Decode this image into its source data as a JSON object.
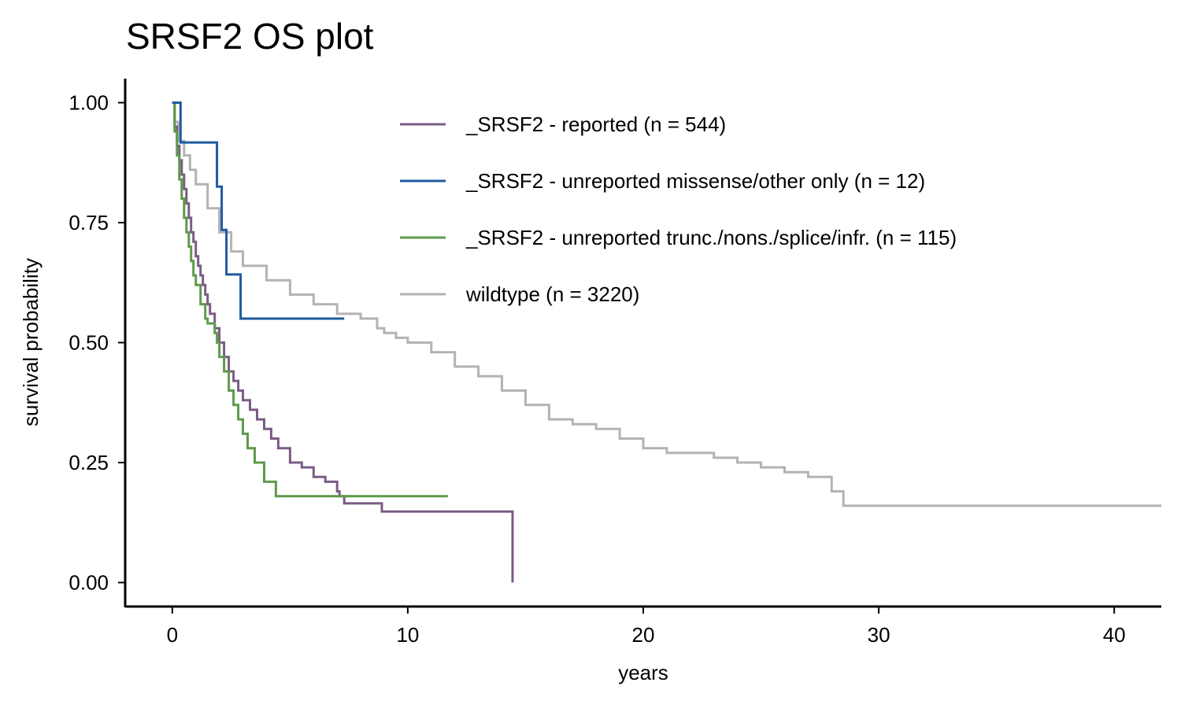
{
  "chart_data": {
    "type": "line",
    "title": "SRSF2 OS plot",
    "xlabel": "years",
    "ylabel": "survival probability",
    "xlim": [
      -2,
      42
    ],
    "ylim": [
      -0.05,
      1.05
    ],
    "xticks": [
      0,
      10,
      20,
      30,
      40
    ],
    "xtick_labels": [
      "0",
      "10",
      "20",
      "30",
      "40"
    ],
    "yticks": [
      0,
      0.25,
      0.5,
      0.75,
      1.0
    ],
    "ytick_labels": [
      "0.00",
      "0.25",
      "0.50",
      "0.75",
      "1.00"
    ],
    "grid": false,
    "legend_position": "top-right",
    "step": true,
    "series": [
      {
        "name": "_SRSF2 - reported (n = 544)",
        "color": "#7b5c85",
        "x": [
          0,
          0.1,
          0.2,
          0.3,
          0.4,
          0.5,
          0.6,
          0.7,
          0.8,
          0.9,
          1.0,
          1.1,
          1.2,
          1.3,
          1.4,
          1.5,
          1.6,
          1.8,
          2.0,
          2.2,
          2.4,
          2.6,
          2.8,
          3.0,
          3.3,
          3.6,
          3.9,
          4.2,
          4.5,
          5.0,
          5.5,
          6.0,
          6.5,
          6.9,
          7.0,
          7.1,
          7.3,
          8.0,
          8.9,
          10.0,
          12.0,
          14.4,
          14.45
        ],
        "y": [
          1.0,
          0.95,
          0.91,
          0.88,
          0.85,
          0.82,
          0.79,
          0.76,
          0.73,
          0.71,
          0.68,
          0.66,
          0.64,
          0.62,
          0.6,
          0.58,
          0.56,
          0.53,
          0.5,
          0.47,
          0.44,
          0.42,
          0.4,
          0.38,
          0.36,
          0.34,
          0.32,
          0.3,
          0.28,
          0.25,
          0.24,
          0.22,
          0.21,
          0.21,
          0.19,
          0.18,
          0.165,
          0.165,
          0.148,
          0.148,
          0.148,
          0.148,
          0.0
        ]
      },
      {
        "name": "_SRSF2 - unreported missense/other only (n = 12)",
        "color": "#1f5aa0",
        "x": [
          0,
          0.35,
          1.9,
          2.1,
          2.3,
          2.9,
          7.3
        ],
        "y": [
          1.0,
          0.917,
          0.825,
          0.735,
          0.642,
          0.55,
          0.55
        ]
      },
      {
        "name": "_SRSF2 - unreported trunc./nons./splice/infr. (n = 115)",
        "color": "#5e9a4b",
        "x": [
          0,
          0.1,
          0.2,
          0.3,
          0.4,
          0.5,
          0.6,
          0.7,
          0.8,
          0.9,
          1.0,
          1.2,
          1.4,
          1.5,
          1.8,
          1.9,
          2.0,
          2.2,
          2.4,
          2.6,
          2.8,
          3.0,
          3.2,
          3.5,
          3.9,
          4.4,
          11.7
        ],
        "y": [
          1.0,
          0.94,
          0.89,
          0.84,
          0.8,
          0.76,
          0.73,
          0.7,
          0.67,
          0.64,
          0.62,
          0.58,
          0.55,
          0.54,
          0.52,
          0.5,
          0.47,
          0.44,
          0.4,
          0.37,
          0.34,
          0.31,
          0.28,
          0.25,
          0.21,
          0.18,
          0.18
        ]
      },
      {
        "name": "wildtype (n = 3220)",
        "color": "#b3b3b3",
        "x": [
          0,
          0.1,
          0.25,
          0.5,
          0.75,
          1.0,
          1.5,
          2.0,
          2.5,
          3.0,
          4.0,
          5.0,
          6.0,
          7.0,
          8.0,
          8.7,
          9.0,
          9.5,
          10.0,
          11.0,
          12.0,
          13.0,
          14.0,
          15.0,
          16.0,
          17.0,
          18.0,
          19.0,
          20.0,
          21.0,
          22.0,
          23.0,
          24.0,
          25.0,
          26.0,
          27.0,
          28.0,
          28.5,
          29.0,
          42.0
        ],
        "y": [
          1.0,
          0.96,
          0.92,
          0.89,
          0.86,
          0.83,
          0.78,
          0.73,
          0.69,
          0.66,
          0.63,
          0.6,
          0.58,
          0.56,
          0.55,
          0.53,
          0.52,
          0.51,
          0.5,
          0.48,
          0.45,
          0.43,
          0.4,
          0.37,
          0.34,
          0.33,
          0.32,
          0.3,
          0.28,
          0.27,
          0.27,
          0.26,
          0.25,
          0.24,
          0.23,
          0.22,
          0.19,
          0.16,
          0.16,
          0.16
        ]
      }
    ]
  }
}
